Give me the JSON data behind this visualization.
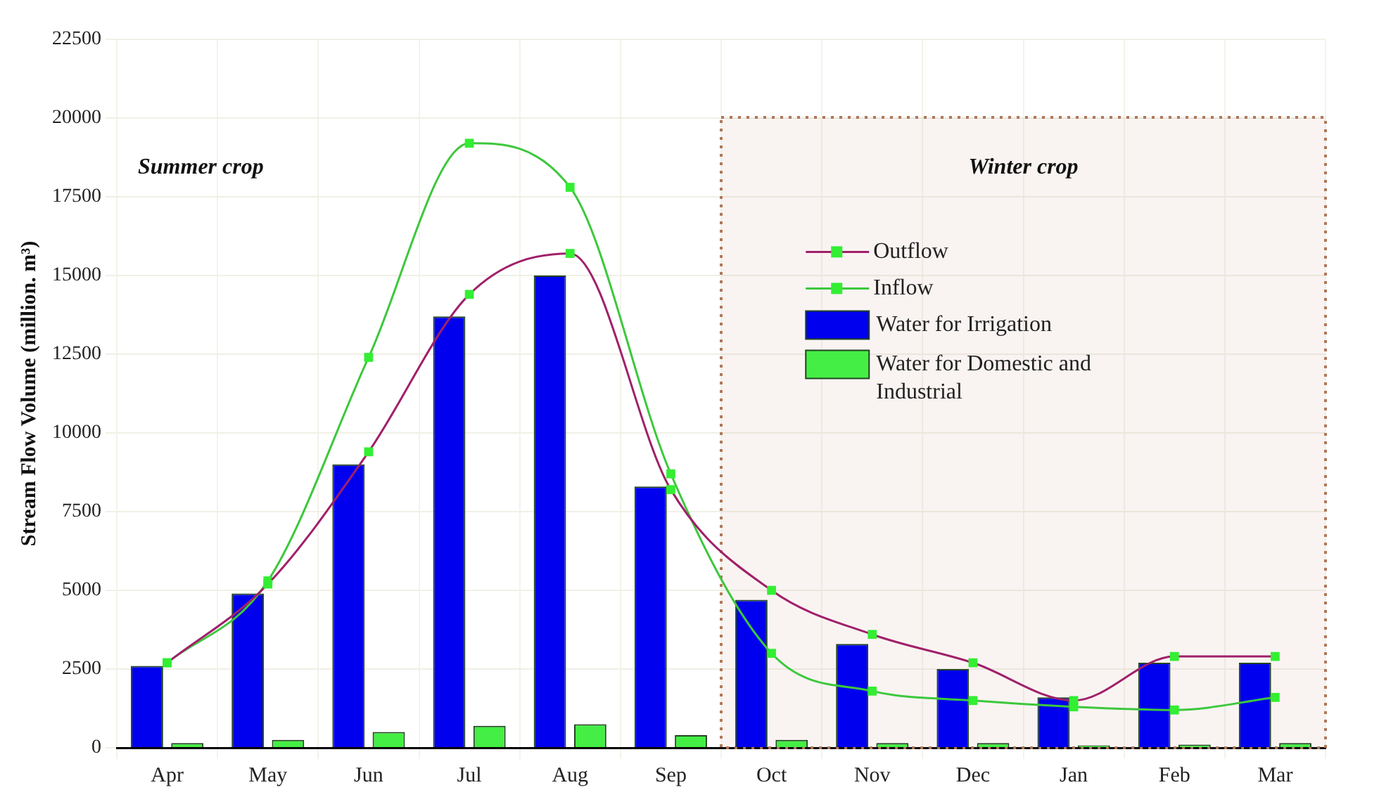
{
  "chart_data": {
    "type": "bar",
    "ylabel": "Stream Flow Volume (million. m³)",
    "categories": [
      "Apr",
      "May",
      "Jun",
      "Jul",
      "Aug",
      "Sep",
      "Oct",
      "Nov",
      "Dec",
      "Jan",
      "Feb",
      "Mar"
    ],
    "series": [
      {
        "name": "Outflow",
        "type": "line",
        "color": "#a0206a",
        "values": [
          2700,
          5200,
          9400,
          14400,
          15700,
          8200,
          5000,
          3600,
          2700,
          1500,
          2900,
          2900
        ]
      },
      {
        "name": "Inflow",
        "type": "line",
        "color": "#3cc83c",
        "values": [
          2700,
          5300,
          12400,
          19200,
          17800,
          8700,
          3000,
          1800,
          1500,
          1300,
          1200,
          1600
        ]
      },
      {
        "name": "Water for Irrigation",
        "color": "#0000ee",
        "values": [
          2600,
          4900,
          9000,
          13700,
          15000,
          8300,
          4700,
          3300,
          2500,
          1600,
          2700,
          2700
        ]
      },
      {
        "name": "Water for Domestic and Industrial",
        "color": "#44ee44",
        "values": [
          150,
          250,
          500,
          700,
          750,
          400,
          250,
          150,
          150,
          80,
          100,
          150
        ]
      }
    ],
    "ylim": [
      0,
      22500
    ],
    "yticks": [
      0,
      2500,
      5000,
      7500,
      10000,
      12500,
      15000,
      17500,
      20000,
      22500
    ],
    "grid": true,
    "legend": "top right",
    "marker": "square",
    "bands": [
      {
        "axis": "x",
        "from": "Oct",
        "to": "Mar",
        "label": "Winter crop",
        "color": "#b07858"
      }
    ],
    "annotations": [
      "Summer crop"
    ]
  }
}
